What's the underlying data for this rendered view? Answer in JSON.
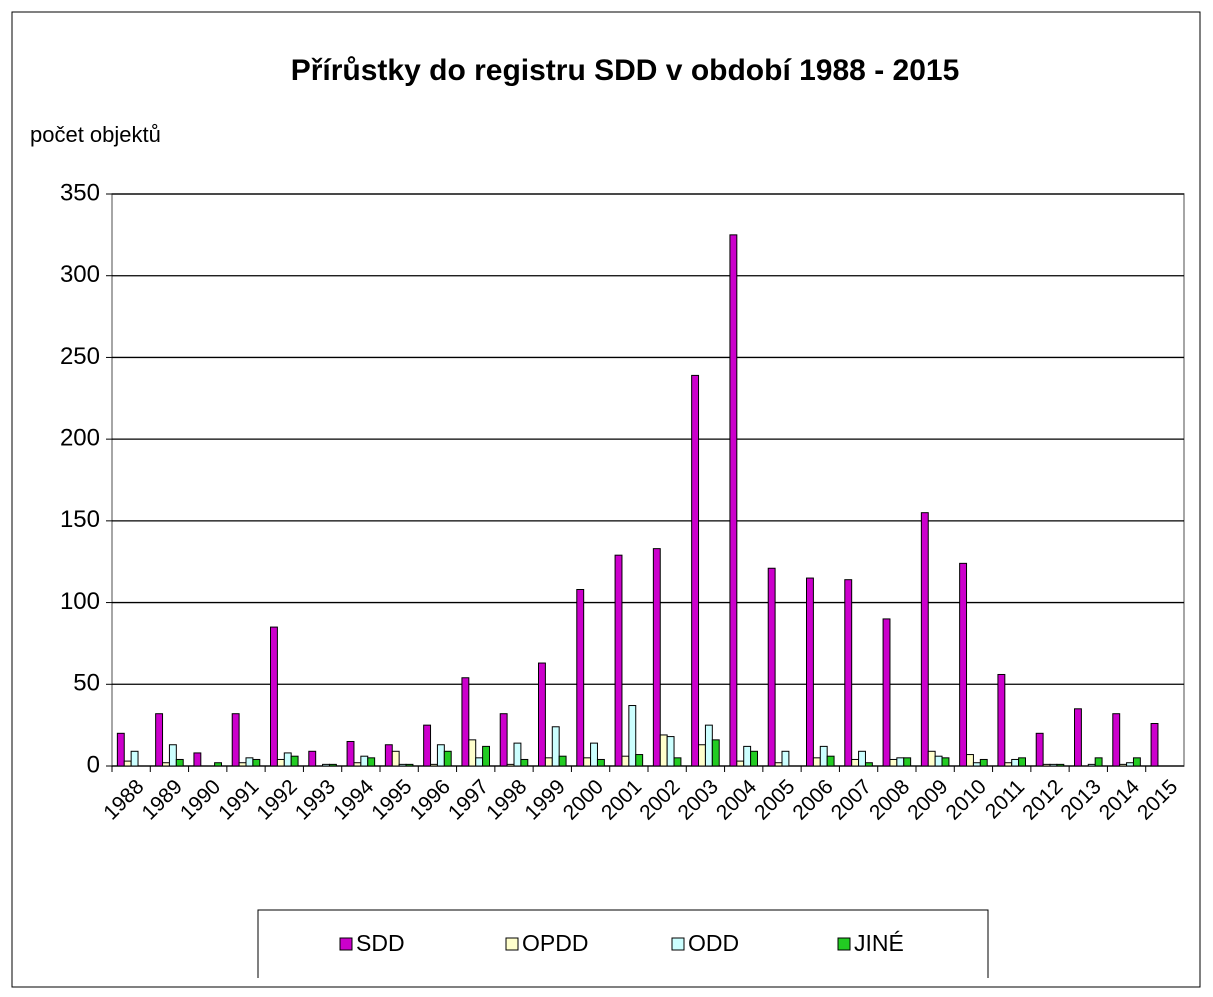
{
  "chart_data": {
    "type": "bar",
    "title": "Přírůstky do registru SDD v období 1988 - 2015",
    "y_label": "počet objektů",
    "categories": [
      "1988",
      "1989",
      "1990",
      "1991",
      "1992",
      "1993",
      "1994",
      "1995",
      "1996",
      "1997",
      "1998",
      "1999",
      "2000",
      "2001",
      "2002",
      "2003",
      "2004",
      "2005",
      "2006",
      "2007",
      "2008",
      "2009",
      "2010",
      "2011",
      "2012",
      "2013",
      "2014",
      "2015"
    ],
    "series": [
      {
        "name": "SDD",
        "color": "#cc00cc",
        "values": [
          20,
          32,
          8,
          32,
          85,
          9,
          15,
          13,
          25,
          54,
          32,
          63,
          108,
          129,
          133,
          239,
          325,
          121,
          115,
          114,
          90,
          155,
          124,
          56,
          20,
          35,
          32,
          26
        ]
      },
      {
        "name": "OPDD",
        "color": "#ffffcc",
        "values": [
          3,
          2,
          0,
          2,
          4,
          0,
          2,
          9,
          1,
          16,
          1,
          5,
          5,
          6,
          19,
          13,
          3,
          2,
          5,
          4,
          4,
          9,
          7,
          2,
          1,
          0,
          1,
          0
        ]
      },
      {
        "name": "ODD",
        "color": "#ccffff",
        "values": [
          9,
          13,
          0,
          5,
          8,
          1,
          6,
          1,
          13,
          5,
          14,
          24,
          14,
          37,
          18,
          25,
          12,
          9,
          12,
          9,
          5,
          6,
          2,
          4,
          1,
          1,
          2,
          0
        ]
      },
      {
        "name": "JINÉ",
        "color": "#22cc22",
        "values": [
          0,
          4,
          2,
          4,
          6,
          1,
          5,
          1,
          9,
          12,
          4,
          6,
          4,
          7,
          5,
          16,
          9,
          0,
          6,
          2,
          5,
          5,
          4,
          5,
          1,
          5,
          5,
          0
        ]
      }
    ],
    "ylim": [
      0,
      350
    ],
    "yticks": [
      0,
      50,
      100,
      150,
      200,
      250,
      300,
      350
    ],
    "grid": true
  }
}
